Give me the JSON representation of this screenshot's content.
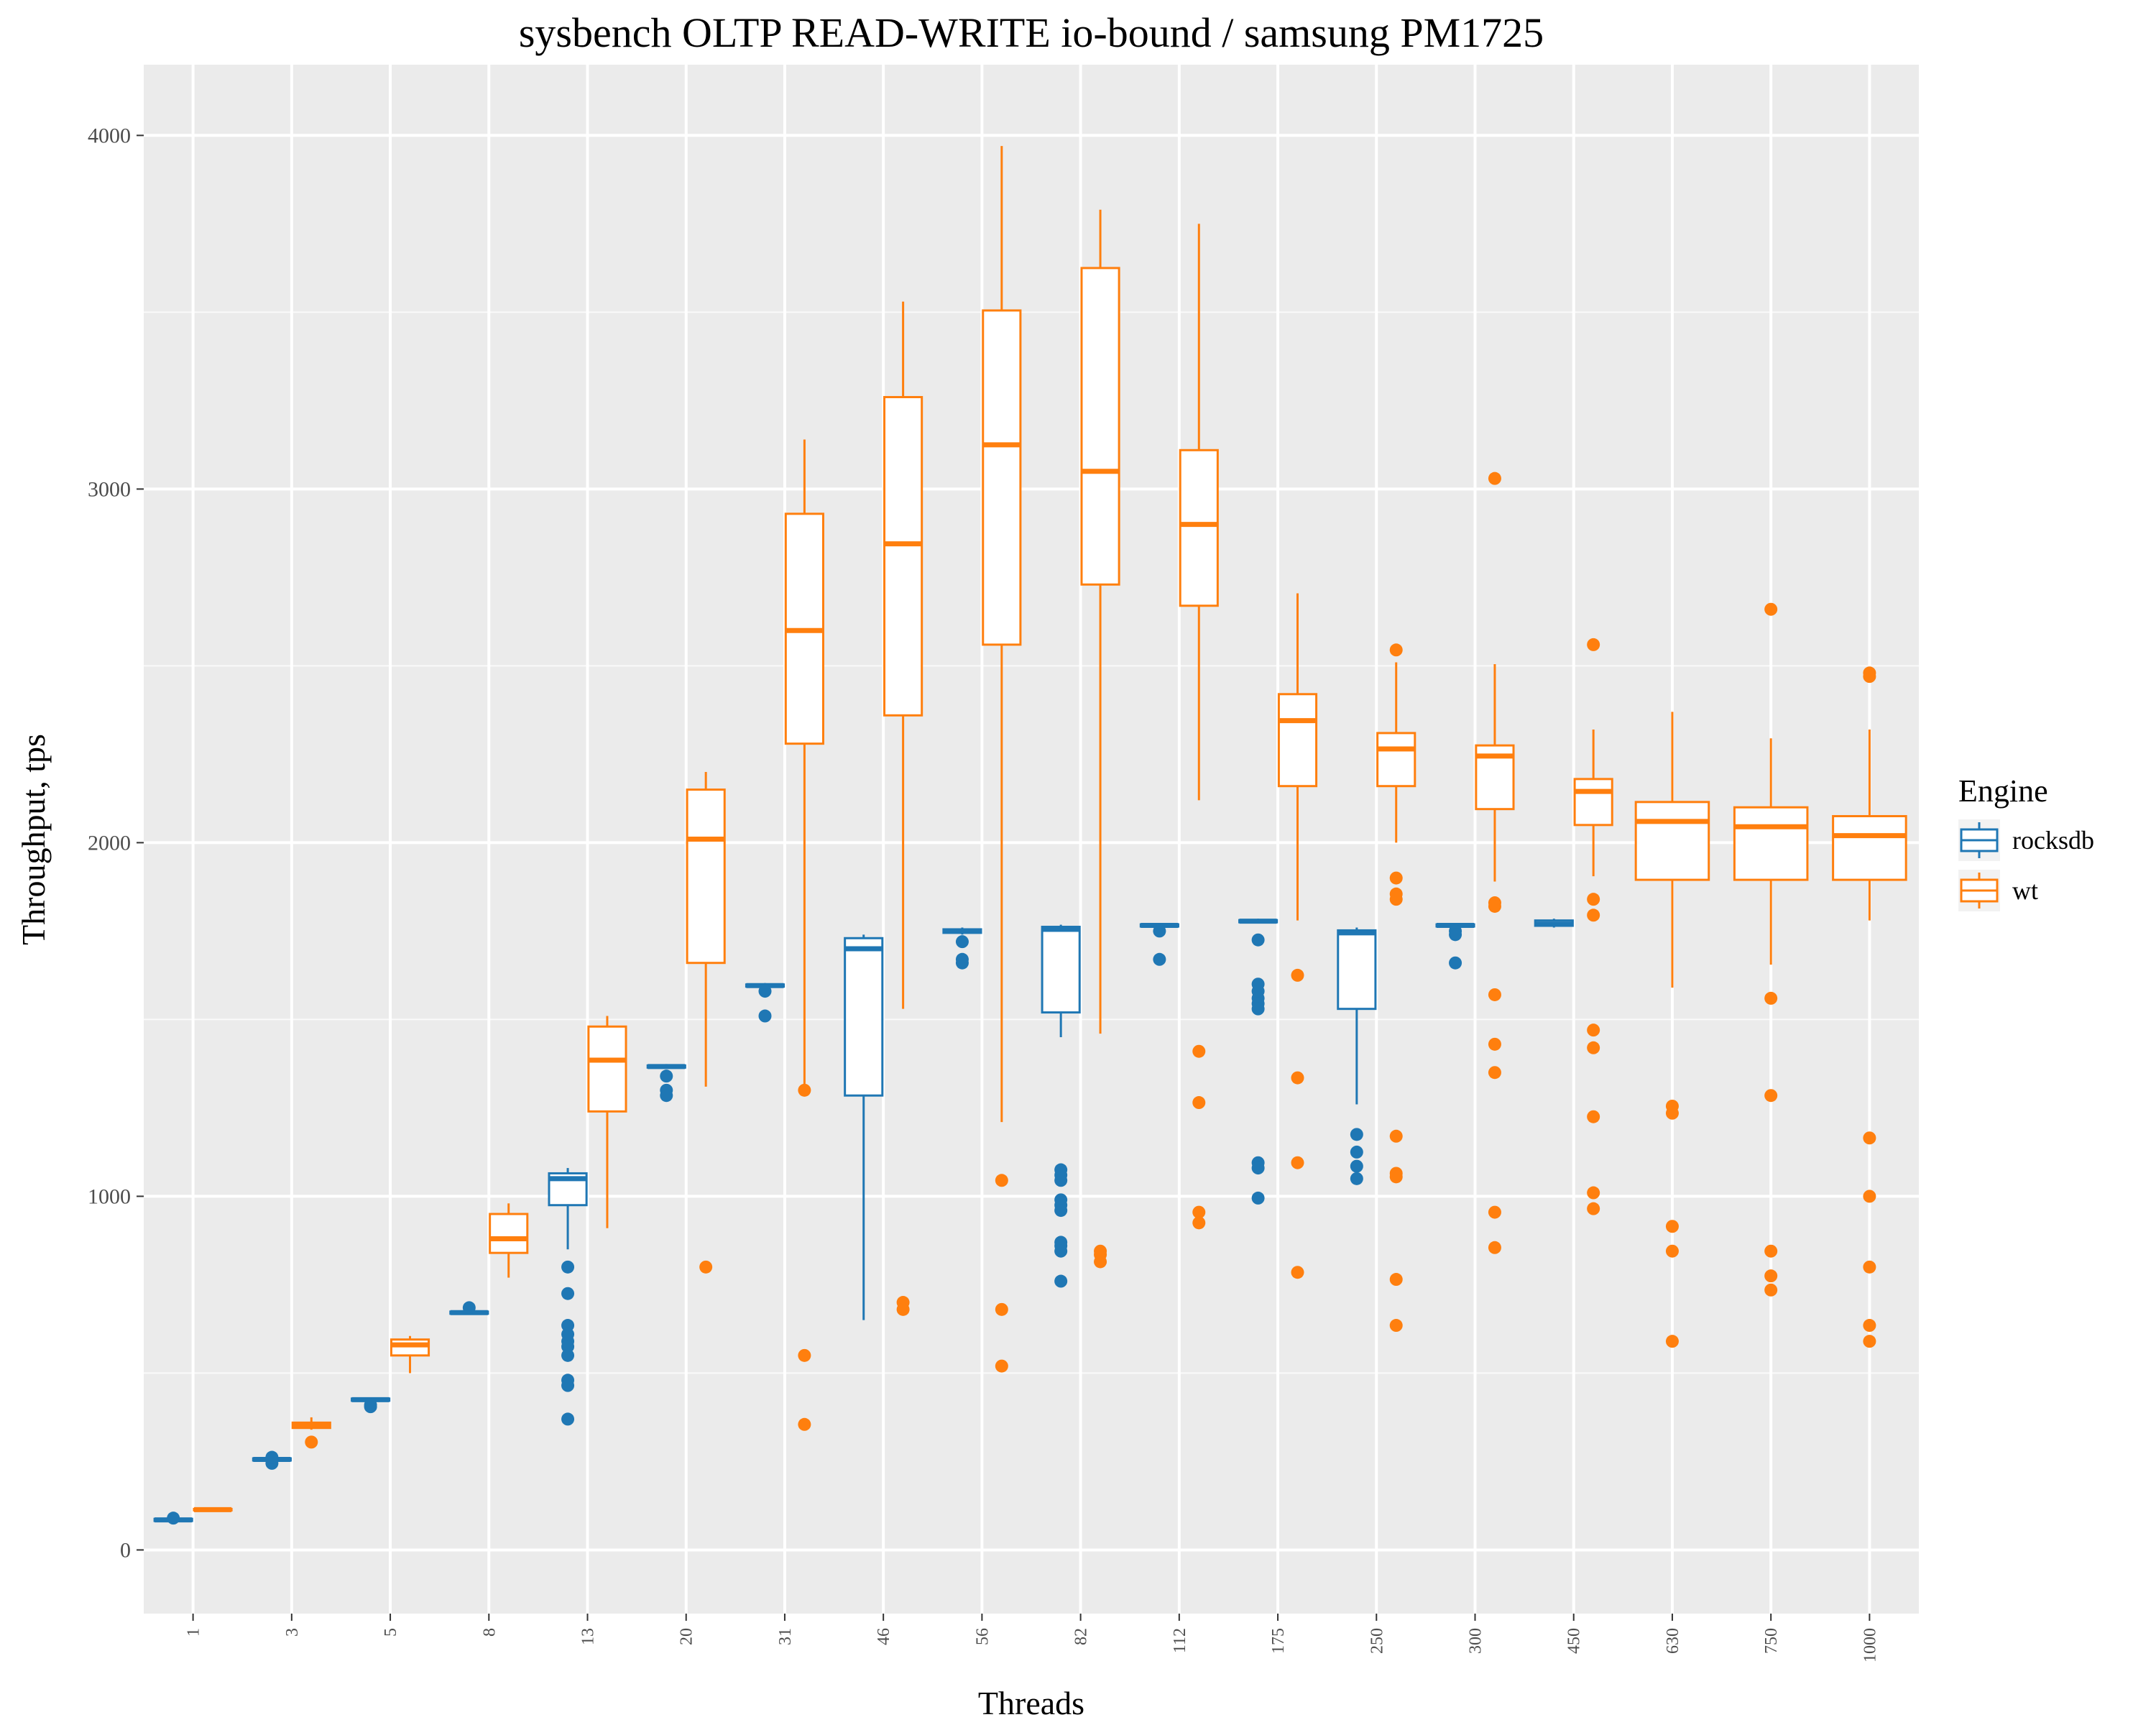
{
  "chart_data": {
    "type": "boxplot",
    "title": "sysbench OLTP READ-WRITE io-bound / samsung PM1725",
    "xlabel": "Threads",
    "ylabel": "Throughput, tps",
    "categories": [
      "1",
      "3",
      "5",
      "8",
      "13",
      "20",
      "31",
      "46",
      "56",
      "82",
      "112",
      "175",
      "250",
      "300",
      "450",
      "630",
      "750",
      "1000"
    ],
    "ylim": [
      -180,
      4200
    ],
    "yticks": [
      0,
      1000,
      2000,
      3000,
      4000
    ],
    "grid": true,
    "legend": {
      "title": "Engine",
      "position": "right"
    },
    "series": [
      {
        "name": "rocksdb",
        "color": "#1f77b4",
        "boxes": [
          {
            "cat": "1",
            "lw": 80,
            "q1": 82,
            "med": 85,
            "q3": 88,
            "uw": 92,
            "out": [
              90
            ]
          },
          {
            "cat": "3",
            "lw": 250,
            "q1": 253,
            "med": 256,
            "q3": 259,
            "uw": 263,
            "out": [
              245,
              262
            ]
          },
          {
            "cat": "5",
            "lw": 420,
            "q1": 422,
            "med": 425,
            "q3": 428,
            "uw": 431,
            "out": [
              405,
              410
            ]
          },
          {
            "cat": "8",
            "lw": 665,
            "q1": 668,
            "med": 671,
            "q3": 674,
            "uw": 678,
            "out": [
              685
            ]
          },
          {
            "cat": "13",
            "lw": 850,
            "q1": 975,
            "med": 1050,
            "q3": 1065,
            "uw": 1080,
            "out": [
              800,
              725,
              635,
              610,
              590,
              575,
              550,
              480,
              465,
              370
            ]
          },
          {
            "cat": "20",
            "lw": 1360,
            "q1": 1364,
            "med": 1367,
            "q3": 1370,
            "uw": 1374,
            "out": [
              1340,
              1300,
              1285
            ]
          },
          {
            "cat": "31",
            "lw": 1590,
            "q1": 1593,
            "med": 1596,
            "q3": 1599,
            "uw": 1603,
            "out": [
              1580,
              1510
            ]
          },
          {
            "cat": "46",
            "lw": 650,
            "q1": 1285,
            "med": 1700,
            "q3": 1730,
            "uw": 1740,
            "out": []
          },
          {
            "cat": "56",
            "lw": 1740,
            "q1": 1745,
            "med": 1750,
            "q3": 1755,
            "uw": 1760,
            "out": [
              1720,
              1670,
              1660
            ]
          },
          {
            "cat": "82",
            "lw": 1450,
            "q1": 1520,
            "med": 1755,
            "q3": 1762,
            "uw": 1768,
            "out": [
              1075,
              1060,
              1045,
              990,
              975,
              960,
              870,
              860,
              845,
              760
            ]
          },
          {
            "cat": "112",
            "lw": 1760,
            "q1": 1763,
            "med": 1766,
            "q3": 1769,
            "uw": 1773,
            "out": [
              1750,
              1670
            ]
          },
          {
            "cat": "175",
            "lw": 1772,
            "q1": 1775,
            "med": 1778,
            "q3": 1781,
            "uw": 1785,
            "out": [
              1725,
              1600,
              1580,
              1560,
              1545,
              1530,
              1095,
              1080,
              995
            ]
          },
          {
            "cat": "250",
            "lw": 1260,
            "q1": 1530,
            "med": 1745,
            "q3": 1752,
            "uw": 1760,
            "out": [
              1175,
              1125,
              1085,
              1050
            ]
          },
          {
            "cat": "300",
            "lw": 1760,
            "q1": 1763,
            "med": 1766,
            "q3": 1769,
            "uw": 1773,
            "out": [
              1750,
              1740,
              1660
            ]
          },
          {
            "cat": "450",
            "lw": 1760,
            "q1": 1765,
            "med": 1770,
            "q3": 1780,
            "uw": 1785,
            "out": []
          }
        ]
      },
      {
        "name": "wt",
        "color": "#ff7f0e",
        "boxes": [
          {
            "cat": "1",
            "lw": 110,
            "q1": 112,
            "med": 114,
            "q3": 116,
            "uw": 118,
            "out": []
          },
          {
            "cat": "3",
            "lw": 340,
            "q1": 345,
            "med": 352,
            "q3": 360,
            "uw": 375,
            "out": [
              305
            ]
          },
          {
            "cat": "5",
            "lw": 500,
            "q1": 550,
            "med": 580,
            "q3": 595,
            "uw": 605,
            "out": []
          },
          {
            "cat": "8",
            "lw": 770,
            "q1": 840,
            "med": 880,
            "q3": 950,
            "uw": 980,
            "out": []
          },
          {
            "cat": "13",
            "lw": 910,
            "q1": 1240,
            "med": 1385,
            "q3": 1480,
            "uw": 1510,
            "out": []
          },
          {
            "cat": "20",
            "lw": 1310,
            "q1": 1660,
            "med": 2010,
            "q3": 2150,
            "uw": 2200,
            "out": [
              800
            ]
          },
          {
            "cat": "31",
            "lw": 1300,
            "q1": 2280,
            "med": 2600,
            "q3": 2930,
            "uw": 3140,
            "out": [
              1300,
              550,
              355
            ]
          },
          {
            "cat": "46",
            "lw": 1530,
            "q1": 2360,
            "med": 2845,
            "q3": 3260,
            "uw": 3530,
            "out": [
              700,
              680
            ]
          },
          {
            "cat": "56",
            "lw": 1210,
            "q1": 2560,
            "med": 3125,
            "q3": 3505,
            "uw": 3970,
            "out": [
              1045,
              680,
              520
            ]
          },
          {
            "cat": "82",
            "lw": 1460,
            "q1": 2730,
            "med": 3050,
            "q3": 3625,
            "uw": 3790,
            "out": [
              845,
              835,
              815
            ]
          },
          {
            "cat": "112",
            "lw": 2120,
            "q1": 2670,
            "med": 2900,
            "q3": 3110,
            "uw": 3750,
            "out": [
              1410,
              1265,
              955,
              925
            ]
          },
          {
            "cat": "175",
            "lw": 1780,
            "q1": 2160,
            "med": 2345,
            "q3": 2420,
            "uw": 2705,
            "out": [
              1625,
              1335,
              1095,
              785
            ]
          },
          {
            "cat": "250",
            "lw": 2000,
            "q1": 2160,
            "med": 2265,
            "q3": 2310,
            "uw": 2510,
            "out": [
              2545,
              1900,
              1855,
              1840,
              1170,
              1065,
              1055,
              765,
              635
            ]
          },
          {
            "cat": "300",
            "lw": 1890,
            "q1": 2095,
            "med": 2245,
            "q3": 2275,
            "uw": 2505,
            "out": [
              3030,
              1830,
              1820,
              1570,
              1430,
              1350,
              955,
              855
            ]
          },
          {
            "cat": "450",
            "lw": 1905,
            "q1": 2050,
            "med": 2145,
            "q3": 2180,
            "uw": 2320,
            "out": [
              2560,
              1840,
              1795,
              1470,
              1420,
              1225,
              1010,
              965
            ]
          },
          {
            "cat": "630",
            "lw": 1590,
            "q1": 1895,
            "med": 2060,
            "q3": 2115,
            "uw": 2370,
            "out": [
              1255,
              1235,
              915,
              845,
              590
            ]
          },
          {
            "cat": "750",
            "lw": 1655,
            "q1": 1895,
            "med": 2045,
            "q3": 2100,
            "uw": 2295,
            "out": [
              2660,
              1560,
              1285,
              845,
              775,
              735
            ]
          },
          {
            "cat": "1000",
            "lw": 1780,
            "q1": 1895,
            "med": 2020,
            "q3": 2075,
            "uw": 2320,
            "out": [
              2480,
              2470,
              1165,
              1000,
              800,
              635,
              590
            ]
          }
        ]
      }
    ]
  }
}
